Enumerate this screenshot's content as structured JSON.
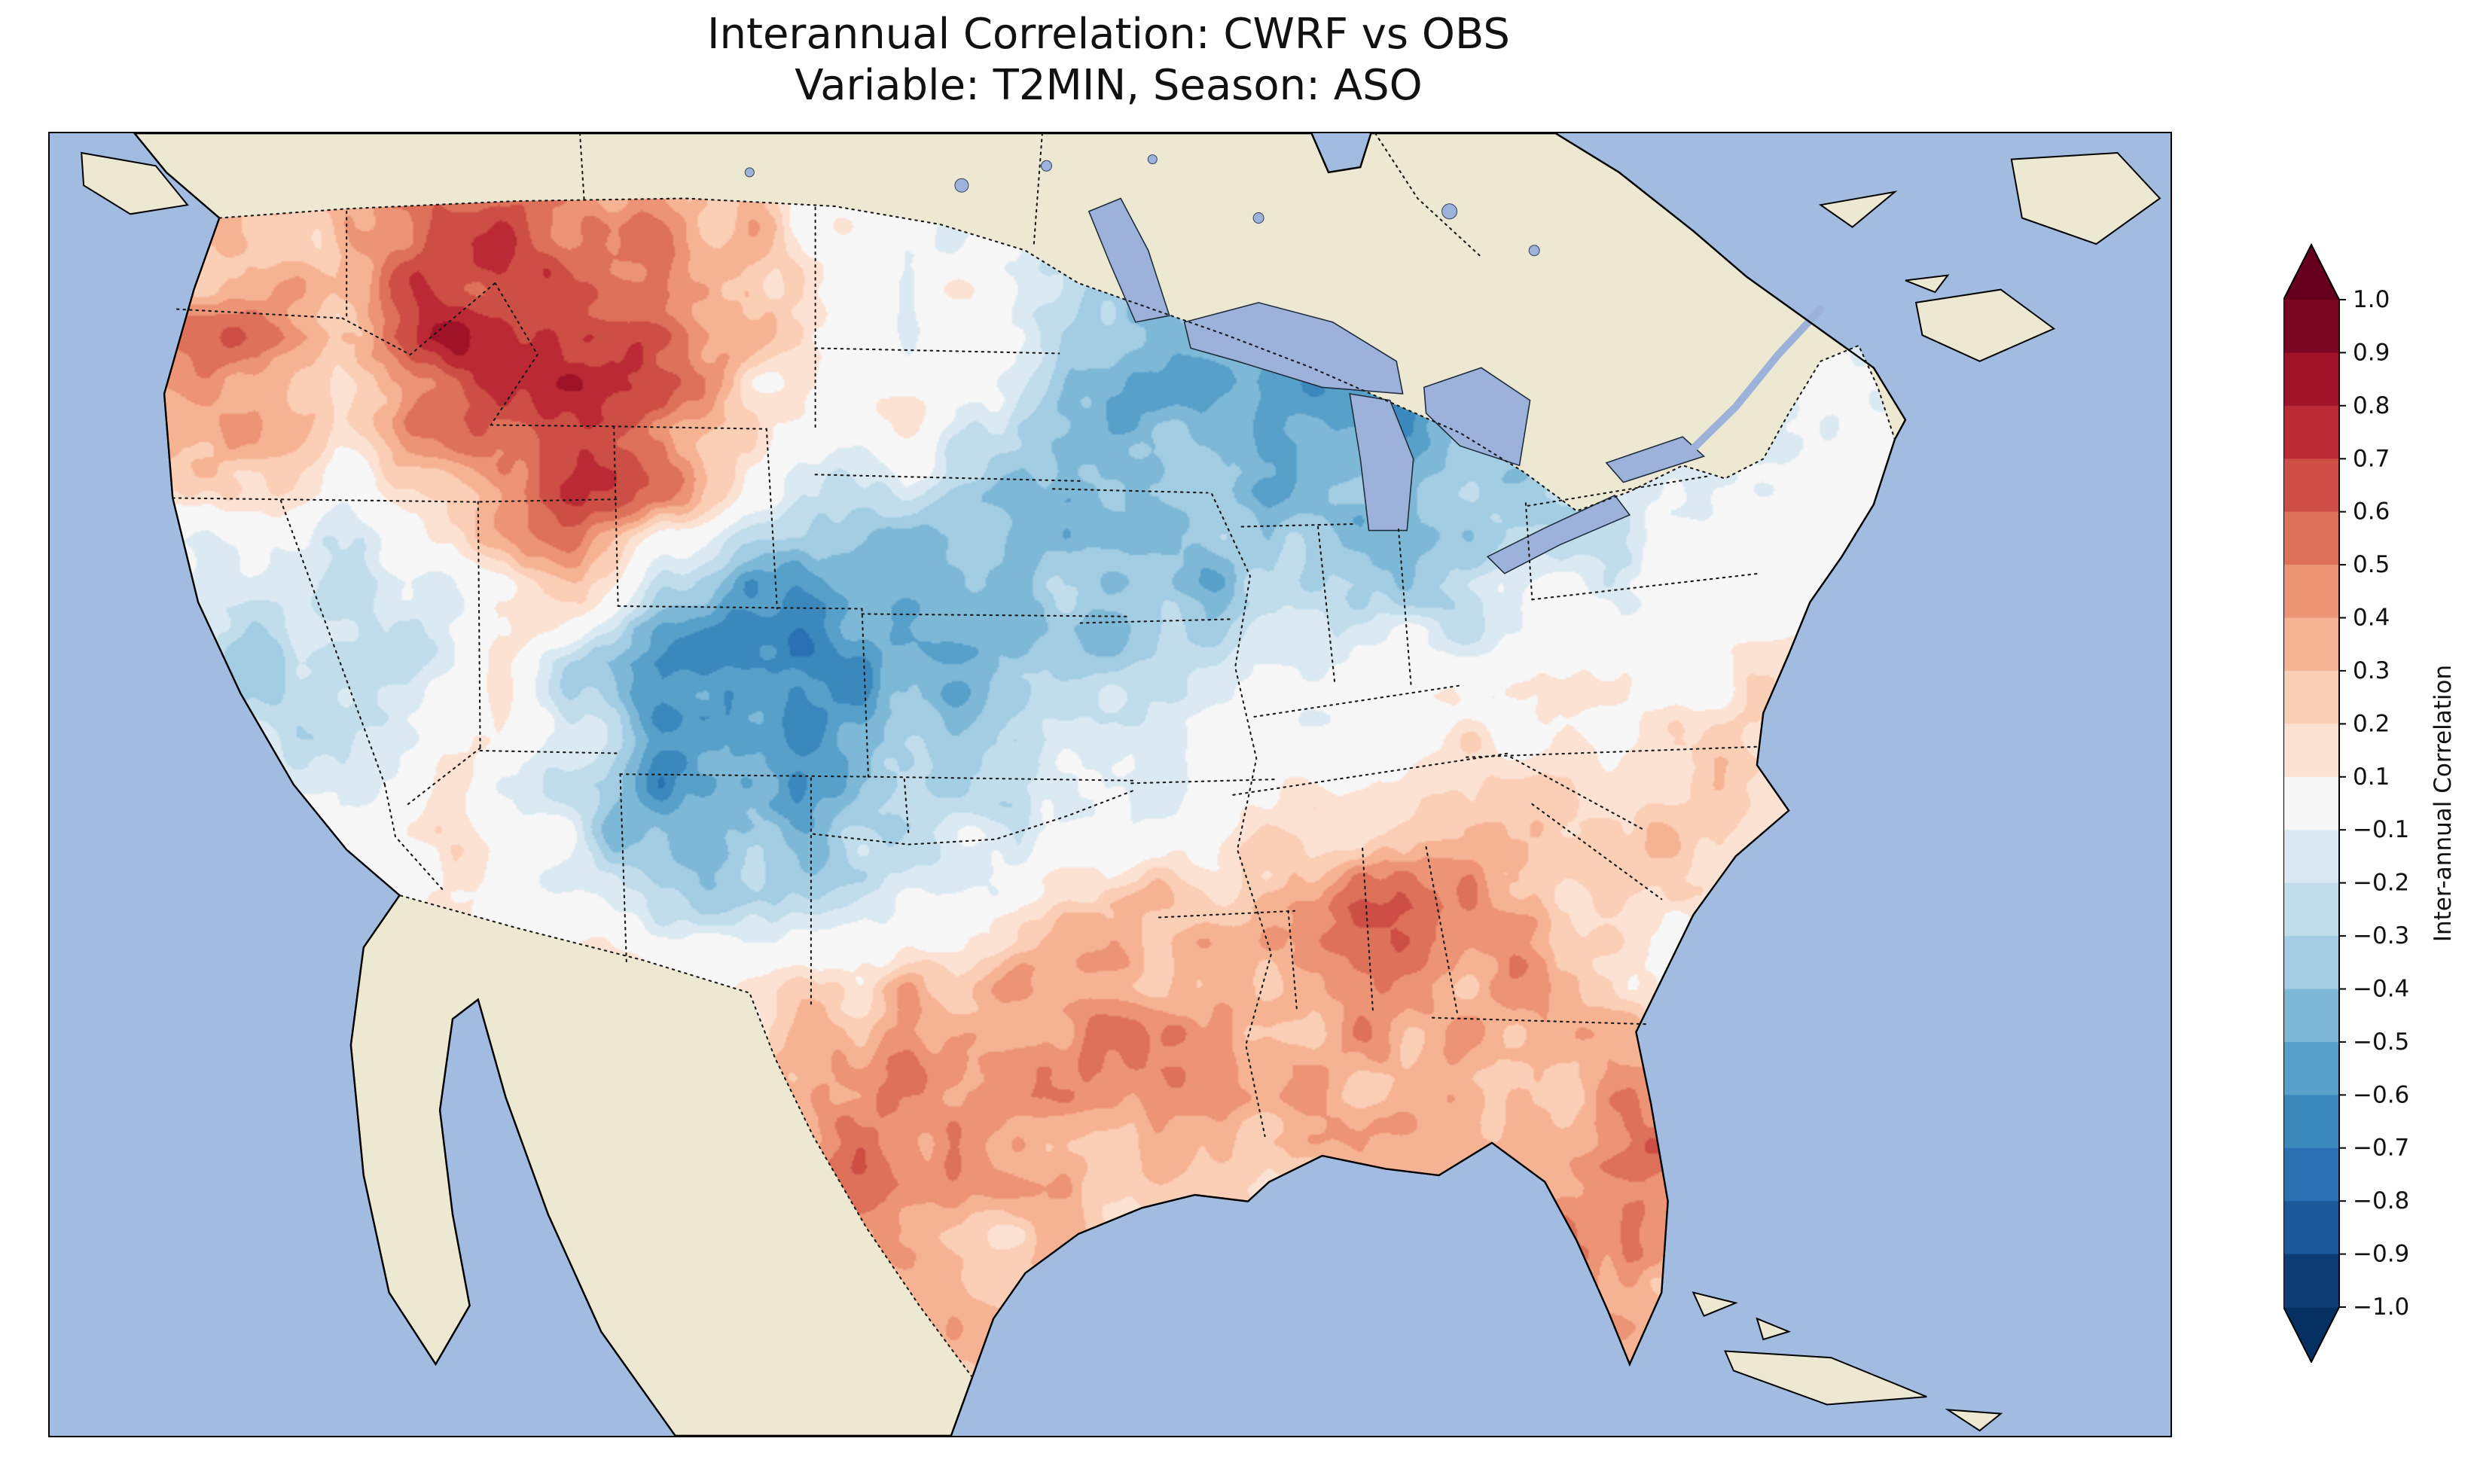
{
  "colors": {
    "background": "#ffffff",
    "ocean": "#a1bbe1",
    "land": "#ece8d1",
    "lake": "#9cb2da",
    "coastline": "#000000",
    "border_dotted": "#1a1a1a",
    "title_text": "#111111",
    "cmap_stops": [
      "#053061",
      "#2166ac",
      "#4393c3",
      "#92c5de",
      "#d1e5f0",
      "#f7f7f7",
      "#fddbc7",
      "#f4a582",
      "#d6604d",
      "#b2182b",
      "#67001f"
    ]
  },
  "chart_data": {
    "type": "heatmap",
    "title": "Interannual Correlation: CWRF vs OBS",
    "subtitle": "Variable: T2MIN, Season: ASO",
    "comparison": "CWRF vs OBS",
    "variable": "T2MIN",
    "season": "ASO",
    "region": "Contiguous United States on a North America basemap (filled-contour correlation field masked to the U.S.)",
    "colorbar": {
      "label": "Inter-annual Correlation",
      "orientation": "vertical",
      "position": "right",
      "vmin": -1.0,
      "vmax": 1.0,
      "tick_interval": 0.1,
      "extend": "both",
      "colormap": "RdBu_r",
      "ticks": [
        "1.0",
        "0.9",
        "0.8",
        "0.7",
        "0.6",
        "0.5",
        "0.4",
        "0.3",
        "0.2",
        "0.1",
        "−0.1",
        "−0.2",
        "−0.3",
        "−0.4",
        "−0.5",
        "−0.6",
        "−0.7",
        "−0.8",
        "−0.9",
        "−1.0"
      ]
    },
    "field_grid": {
      "description": "Approximate correlation values read from the map, sampled on a coarse 26x16 grid spanning the plotted area (rows north to south, columns west to east). Strong positives over the Pacific Northwest / northern Rockies and the Gulf Coast / Southeast / Florida / south Texas; strong negatives centered on eastern Colorado-Kansas and the upper Midwest / Great Lakes.",
      "cols": 26,
      "rows": 16,
      "values": [
        [
          0.3,
          0.4,
          0.4,
          0.5,
          0.5,
          0.5,
          0.4,
          0.3,
          0.2,
          0.1,
          0.0,
          -0.1,
          -0.2,
          -0.3,
          -0.4,
          -0.4,
          -0.3,
          -0.3,
          -0.2,
          -0.2,
          -0.1,
          -0.1,
          0.0,
          0.0,
          0.0,
          0.0
        ],
        [
          0.3,
          0.4,
          0.3,
          0.2,
          0.6,
          0.7,
          0.6,
          0.5,
          0.3,
          0.1,
          -0.1,
          0.0,
          -0.2,
          -0.4,
          -0.4,
          -0.4,
          -0.5,
          -0.4,
          -0.3,
          -0.2,
          -0.1,
          0.0,
          0.0,
          0.0,
          0.0,
          0.0
        ],
        [
          0.4,
          0.5,
          0.5,
          0.3,
          0.7,
          0.8,
          0.7,
          0.5,
          0.3,
          0.0,
          0.0,
          0.1,
          -0.3,
          -0.5,
          -0.5,
          -0.5,
          -0.6,
          -0.5,
          -0.3,
          -0.3,
          -0.2,
          -0.1,
          0.0,
          0.0,
          0.0,
          0.0
        ],
        [
          0.3,
          0.3,
          0.4,
          0.2,
          0.5,
          0.7,
          0.8,
          0.6,
          0.2,
          0.0,
          0.1,
          -0.1,
          -0.4,
          -0.5,
          -0.4,
          -0.6,
          -0.6,
          -0.4,
          -0.3,
          -0.2,
          -0.2,
          -0.1,
          -0.1,
          0.0,
          0.0,
          0.0
        ],
        [
          0.1,
          0.1,
          0.2,
          -0.1,
          0.1,
          0.4,
          0.7,
          0.5,
          0.0,
          -0.2,
          -0.3,
          -0.4,
          -0.5,
          -0.4,
          -0.4,
          -0.5,
          -0.4,
          -0.3,
          -0.3,
          -0.2,
          -0.1,
          0.0,
          0.0,
          0.0,
          0.0,
          0.0
        ],
        [
          -0.1,
          -0.1,
          -0.2,
          -0.3,
          -0.2,
          0.2,
          0.3,
          -0.2,
          -0.5,
          -0.5,
          -0.5,
          -0.4,
          -0.4,
          -0.4,
          -0.4,
          -0.3,
          -0.3,
          -0.2,
          -0.1,
          -0.1,
          0.0,
          0.0,
          0.0,
          0.0,
          0.0,
          0.0
        ],
        [
          -0.1,
          -0.2,
          -0.3,
          -0.3,
          -0.2,
          0.1,
          -0.3,
          -0.7,
          -0.7,
          -0.6,
          -0.5,
          -0.4,
          -0.3,
          -0.3,
          -0.2,
          -0.2,
          -0.1,
          -0.1,
          0.0,
          0.0,
          0.1,
          0.1,
          0.0,
          0.0,
          0.0,
          0.0
        ],
        [
          0.0,
          -0.1,
          -0.2,
          -0.1,
          0.0,
          0.1,
          -0.2,
          -0.6,
          -0.6,
          -0.5,
          -0.4,
          -0.3,
          -0.2,
          -0.1,
          -0.1,
          0.0,
          0.0,
          0.1,
          0.1,
          0.2,
          0.2,
          0.1,
          0.0,
          0.0,
          0.0,
          0.0
        ],
        [
          0.1,
          0.1,
          0.0,
          0.1,
          0.1,
          0.0,
          -0.2,
          -0.5,
          -0.5,
          -0.4,
          -0.3,
          -0.2,
          -0.1,
          0.0,
          0.1,
          0.1,
          0.2,
          0.3,
          0.3,
          0.2,
          0.2,
          0.1,
          0.0,
          0.0,
          0.0,
          0.0
        ],
        [
          0.1,
          0.2,
          0.2,
          0.2,
          0.1,
          0.1,
          0.0,
          -0.3,
          -0.3,
          -0.2,
          -0.1,
          0.0,
          0.2,
          0.3,
          0.3,
          0.5,
          0.6,
          0.4,
          0.3,
          0.2,
          0.1,
          0.1,
          0.0,
          0.0,
          0.0,
          0.0
        ],
        [
          0.1,
          0.1,
          0.2,
          0.2,
          0.2,
          0.2,
          0.3,
          0.2,
          0.1,
          0.2,
          0.3,
          0.3,
          0.4,
          0.4,
          0.4,
          0.4,
          0.5,
          0.4,
          0.3,
          0.2,
          0.1,
          0.0,
          0.0,
          0.0,
          0.0,
          0.0
        ],
        [
          0.1,
          0.1,
          0.1,
          0.2,
          0.2,
          0.2,
          0.3,
          0.3,
          0.3,
          0.4,
          0.5,
          0.5,
          0.5,
          0.4,
          0.4,
          0.4,
          0.4,
          0.3,
          0.3,
          0.3,
          0.2,
          0.1,
          0.0,
          0.0,
          0.0,
          0.0
        ],
        [
          0.1,
          0.1,
          0.1,
          0.1,
          0.2,
          0.2,
          0.2,
          0.3,
          0.4,
          0.5,
          0.5,
          0.4,
          0.3,
          0.3,
          0.3,
          0.3,
          0.3,
          0.3,
          0.4,
          0.5,
          0.4,
          0.2,
          0.1,
          0.0,
          0.0,
          0.0
        ],
        [
          0.1,
          0.1,
          0.1,
          0.1,
          0.1,
          0.2,
          0.2,
          0.3,
          0.4,
          0.4,
          0.4,
          0.3,
          0.3,
          0.2,
          0.2,
          0.2,
          0.3,
          0.3,
          0.4,
          0.5,
          0.4,
          0.2,
          0.1,
          0.0,
          0.0,
          0.0
        ],
        [
          0.1,
          0.1,
          0.1,
          0.1,
          0.1,
          0.1,
          0.2,
          0.2,
          0.3,
          0.4,
          0.3,
          0.3,
          0.2,
          0.2,
          0.2,
          0.2,
          0.2,
          0.3,
          0.3,
          0.4,
          0.3,
          0.2,
          0.1,
          0.0,
          0.0,
          0.0
        ],
        [
          0.1,
          0.1,
          0.1,
          0.1,
          0.1,
          0.1,
          0.2,
          0.2,
          0.3,
          0.4,
          0.3,
          0.3,
          0.2,
          0.2,
          0.2,
          0.2,
          0.2,
          0.3,
          0.3,
          0.4,
          0.3,
          0.2,
          0.1,
          0.0,
          0.0,
          0.0
        ]
      ]
    }
  }
}
